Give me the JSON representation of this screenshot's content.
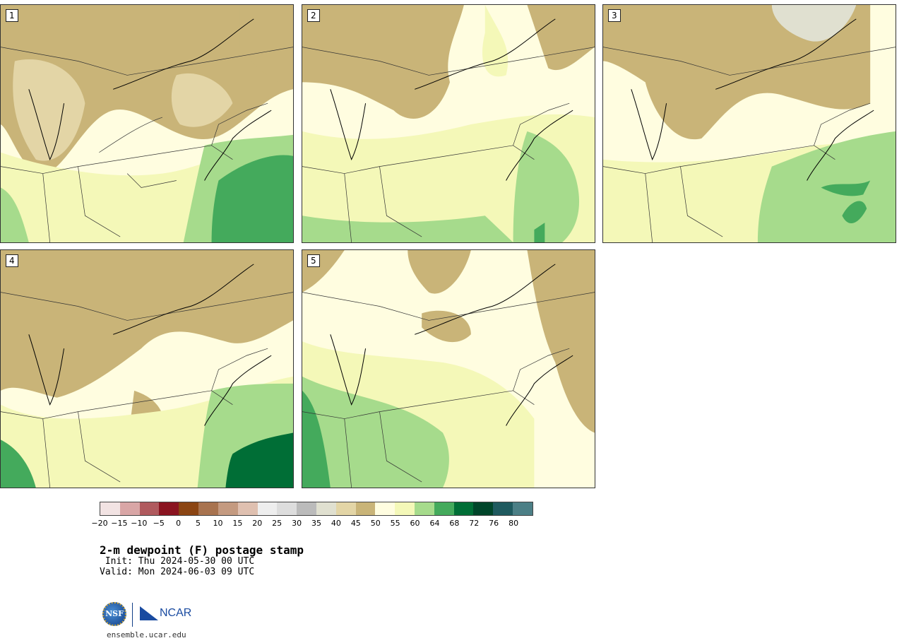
{
  "panels": [
    {
      "label": "1"
    },
    {
      "label": "2"
    },
    {
      "label": "3"
    },
    {
      "label": "4"
    },
    {
      "label": "5"
    }
  ],
  "legend": {
    "colors": [
      "#f2e3e3",
      "#d9a6a6",
      "#b05a5e",
      "#8a1420",
      "#8b4513",
      "#a8734f",
      "#c49a80",
      "#dfc0b0",
      "#eeeeee",
      "#dddddd",
      "#bbbbbb",
      "#e0e0d0",
      "#e3d5a6",
      "#c9b478",
      "#fffde0",
      "#f4f8b8",
      "#a6db8c",
      "#44aa5c",
      "#006e36",
      "#00452a",
      "#1f5a5f",
      "#4c7f86"
    ],
    "ticks": [
      "−20",
      "−15",
      "−10",
      "−5",
      "0",
      "5",
      "10",
      "15",
      "20",
      "25",
      "30",
      "35",
      "40",
      "45",
      "50",
      "55",
      "60",
      "64",
      "68",
      "72",
      "76",
      "80"
    ]
  },
  "title": "2-m dewpoint (F) postage stamp",
  "init": " Init: Thu 2024-05-30 00 UTC",
  "valid": "Valid: Mon 2024-06-03 09 UTC",
  "logos": {
    "nsf": "NSF",
    "ncar": "NCAR"
  },
  "url": "ensemble.ucar.edu"
}
